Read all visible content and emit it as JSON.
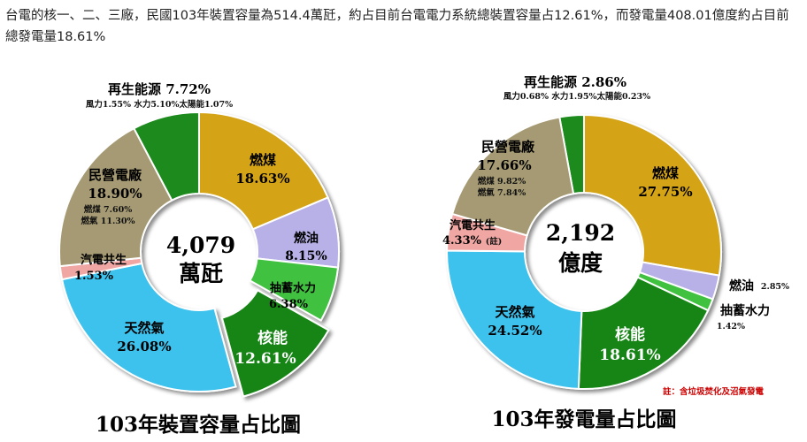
{
  "intro_text": "台電的核一、二、三廠，民國103年裝置容量為514.4萬瓩，約占目前台電電力系統總裝置容量占12.61%，而發電量408.01億度約占目前總發電量18.61%",
  "charts": {
    "capacity": {
      "title": "103年裝置容量占比圖",
      "center_value": "4,079",
      "center_unit": "萬瓩",
      "renewable_title": "再生能源 7.72%",
      "renewable_detail": "風力1.55%  水力5.10%太陽能1.07%",
      "coal": {
        "name": "燃煤",
        "pct": "18.63%"
      },
      "oil": {
        "name": "燃油",
        "pct": "8.15%"
      },
      "pumped": {
        "name": "抽蓄水力",
        "pct": "6.38%"
      },
      "nuclear": {
        "name": "核能",
        "pct": "12.61%"
      },
      "gas": {
        "name": "天然氣",
        "pct": "26.08%"
      },
      "cogen": {
        "name": "汽電共生",
        "pct": "1.53%"
      },
      "ipp": {
        "name": "民營電廠",
        "pct": "18.90%",
        "coal": "燃煤  7.60%",
        "gas": "燃氣 11.30%"
      }
    },
    "generation": {
      "title": "103年發電量占比圖",
      "center_value": "2,192",
      "center_unit": "億度",
      "renewable_title": "再生能源 2.86%",
      "renewable_detail": "風力0.68%  水力1.95%太陽能0.23%",
      "coal": {
        "name": "燃煤",
        "pct": "27.75%"
      },
      "oil": {
        "name": "燃油",
        "pct": "2.85%"
      },
      "pumped": {
        "name": "抽蓄水力",
        "pct": "1.42%"
      },
      "nuclear": {
        "name": "核能",
        "pct": "18.61%"
      },
      "gas": {
        "name": "天然氣",
        "pct": "24.52%"
      },
      "cogen": {
        "name": "汽電共生",
        "pct": "4.33%",
        "note_mark": "(註)"
      },
      "ipp": {
        "name": "民營電廠",
        "pct": "17.66%",
        "coal": "燃煤 9.82%",
        "gas": "燃氣 7.84%"
      },
      "footnote": "註：含垃圾焚化及沼氣發電"
    }
  },
  "colors": {
    "renewable": "#1e8a1e",
    "coal": "#d4a417",
    "oil": "#b7b1e8",
    "pumped": "#3fc23f",
    "nuclear": "#128512",
    "gas": "#3ec2ee",
    "cogen": "#f0a7a4",
    "ipp": "#a59a73"
  },
  "chart_data": [
    {
      "type": "pie",
      "title": "103年裝置容量占比圖",
      "total": "4,079 萬瓩",
      "labels": [
        "再生能源",
        "燃煤",
        "燃油",
        "抽蓄水力",
        "核能",
        "天然氣",
        "汽電共生",
        "民營電廠"
      ],
      "values": [
        7.72,
        18.63,
        8.15,
        6.38,
        12.61,
        26.08,
        1.53,
        18.9
      ],
      "sub_values": {
        "再生能源": {
          "風力": 1.55,
          "水力": 5.1,
          "太陽能": 1.07
        },
        "民營電廠": {
          "燃煤": 7.6,
          "燃氣": 11.3
        }
      },
      "exploded": [
        "核能"
      ]
    },
    {
      "type": "pie",
      "title": "103年發電量占比圖",
      "total": "2,192 億度",
      "labels": [
        "再生能源",
        "燃煤",
        "燃油",
        "抽蓄水力",
        "核能",
        "天然氣",
        "汽電共生",
        "民營電廠"
      ],
      "values": [
        2.86,
        27.75,
        2.85,
        1.42,
        18.61,
        24.52,
        4.33,
        17.66
      ],
      "sub_values": {
        "再生能源": {
          "風力": 0.68,
          "水力": 1.95,
          "太陽能": 0.23
        },
        "民營電廠": {
          "燃煤": 9.82,
          "燃氣": 7.84
        }
      },
      "exploded": []
    }
  ]
}
